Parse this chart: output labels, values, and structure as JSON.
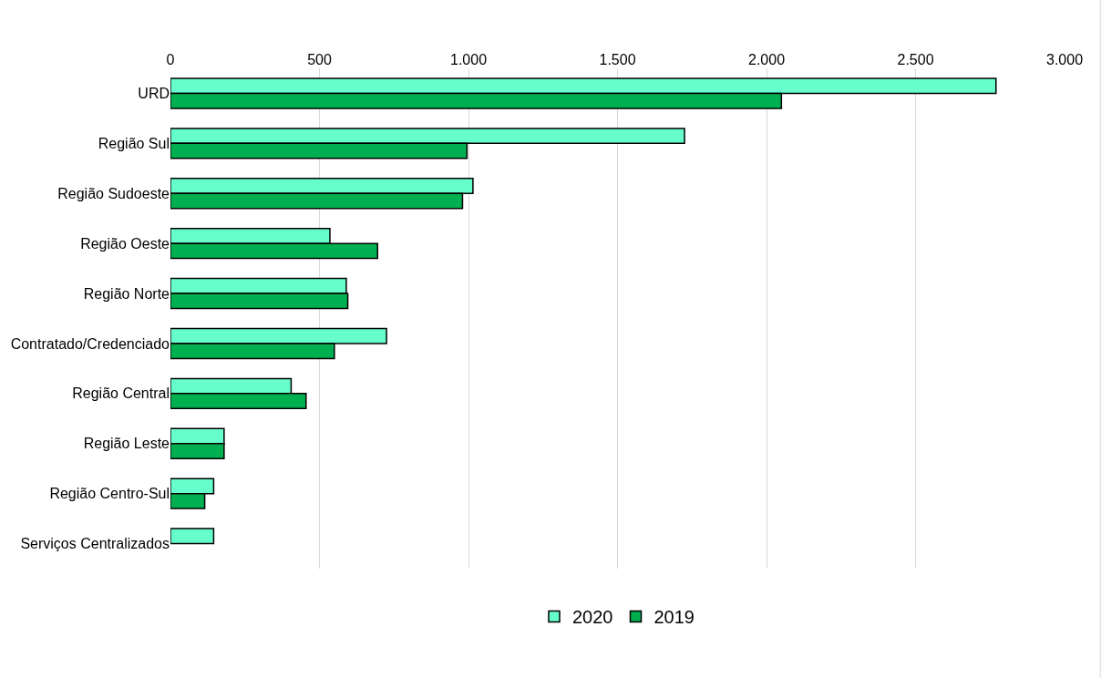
{
  "chart_data": {
    "type": "bar",
    "orientation": "horizontal",
    "categories": [
      "URD",
      "Região Sul",
      "Região Sudoeste",
      "Região Oeste",
      "Região Norte",
      "Contratado/Credenciado",
      "Região Central",
      "Região Leste",
      "Região Centro-Sul",
      "Serviços Centralizados"
    ],
    "series": [
      {
        "name": "2020",
        "color": "#66ffcc",
        "values": [
          2770,
          1725,
          1015,
          535,
          590,
          725,
          405,
          180,
          145,
          145
        ]
      },
      {
        "name": "2019",
        "color": "#00b050",
        "values": [
          2050,
          995,
          980,
          695,
          595,
          550,
          455,
          180,
          115,
          null
        ]
      }
    ],
    "xlim": [
      0,
      3000
    ],
    "xticks": [
      0,
      {
        "value": 500,
        "label": "500"
      },
      {
        "value": 1000,
        "label": "1.000"
      },
      {
        "value": 1500,
        "label": "1.500"
      },
      {
        "value": 2000,
        "label": "2.000"
      },
      {
        "value": 2500,
        "label": "2.500"
      },
      {
        "value": 3000,
        "label": "3.000"
      }
    ],
    "grid": "x",
    "legend": "bottom"
  }
}
